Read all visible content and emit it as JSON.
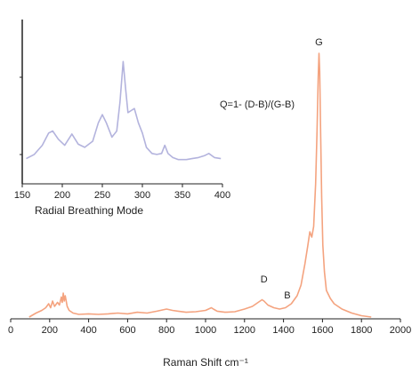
{
  "chart_data": [
    {
      "type": "line",
      "xlabel": "Raman Shift cm⁻¹",
      "ylabel": "",
      "xlim": [
        0,
        2000
      ],
      "ylim": [
        0,
        1
      ],
      "xticks": [
        0,
        200,
        400,
        600,
        800,
        1000,
        1200,
        1400,
        1600,
        1800,
        2000
      ],
      "grid": false,
      "color": "#f4a37f",
      "annotations": [
        {
          "label": "G",
          "x": 1582,
          "y": 0.99
        },
        {
          "label": "D",
          "x": 1300,
          "y": 0.1
        },
        {
          "label": "B",
          "x": 1420,
          "y": 0.04
        }
      ],
      "series": [
        {
          "x": [
            95,
            130,
            160,
            180,
            195,
            205,
            215,
            225,
            240,
            250,
            260,
            265,
            270,
            275,
            280,
            290,
            300,
            320,
            350,
            400,
            450,
            500,
            550,
            600,
            650,
            700,
            750,
            800,
            830,
            860,
            900,
            950,
            1000,
            1030,
            1040,
            1060,
            1100,
            1150,
            1200,
            1240,
            1270,
            1290,
            1300,
            1320,
            1350,
            1380,
            1410,
            1440,
            1470,
            1490,
            1510,
            1525,
            1535,
            1545,
            1555,
            1565,
            1572,
            1578,
            1582,
            1586,
            1590,
            1596,
            1602,
            1610,
            1620,
            1640,
            1660,
            1680,
            1700,
            1750,
            1800,
            1850
          ],
          "y": [
            0.0,
            0.015,
            0.025,
            0.035,
            0.05,
            0.035,
            0.06,
            0.04,
            0.055,
            0.045,
            0.075,
            0.055,
            0.09,
            0.06,
            0.08,
            0.04,
            0.025,
            0.015,
            0.01,
            0.012,
            0.01,
            0.012,
            0.015,
            0.012,
            0.018,
            0.015,
            0.022,
            0.03,
            0.025,
            0.022,
            0.018,
            0.02,
            0.025,
            0.035,
            0.03,
            0.022,
            0.018,
            0.02,
            0.03,
            0.04,
            0.055,
            0.065,
            0.06,
            0.045,
            0.035,
            0.03,
            0.035,
            0.05,
            0.08,
            0.12,
            0.2,
            0.27,
            0.32,
            0.3,
            0.34,
            0.5,
            0.7,
            0.9,
            0.99,
            0.92,
            0.72,
            0.45,
            0.27,
            0.17,
            0.1,
            0.07,
            0.05,
            0.04,
            0.03,
            0.015,
            0.005,
            0.0
          ]
        }
      ]
    },
    {
      "type": "line",
      "xlabel": "Radial Breathing Mode",
      "ylabel": "",
      "xlim": [
        150,
        400
      ],
      "ylim": [
        0,
        1
      ],
      "xticks": [
        150,
        200,
        250,
        300,
        350,
        400
      ],
      "grid": false,
      "color": "#b3b3dd",
      "series": [
        {
          "x": [
            155,
            165,
            175,
            183,
            188,
            195,
            203,
            212,
            220,
            228,
            238,
            245,
            250,
            255,
            262,
            268,
            272,
            276,
            279,
            282,
            286,
            290,
            295,
            300,
            305,
            312,
            318,
            324,
            328,
            332,
            338,
            345,
            355,
            362,
            370,
            378,
            383,
            390,
            398
          ],
          "y": [
            0.03,
            0.07,
            0.16,
            0.28,
            0.3,
            0.22,
            0.16,
            0.27,
            0.17,
            0.14,
            0.2,
            0.38,
            0.46,
            0.38,
            0.24,
            0.3,
            0.58,
            0.98,
            0.72,
            0.48,
            0.5,
            0.52,
            0.38,
            0.28,
            0.14,
            0.08,
            0.07,
            0.08,
            0.16,
            0.08,
            0.04,
            0.02,
            0.02,
            0.03,
            0.04,
            0.06,
            0.08,
            0.04,
            0.03
          ]
        }
      ]
    }
  ],
  "formula": "Q=1- (D-B)/(G-B)"
}
